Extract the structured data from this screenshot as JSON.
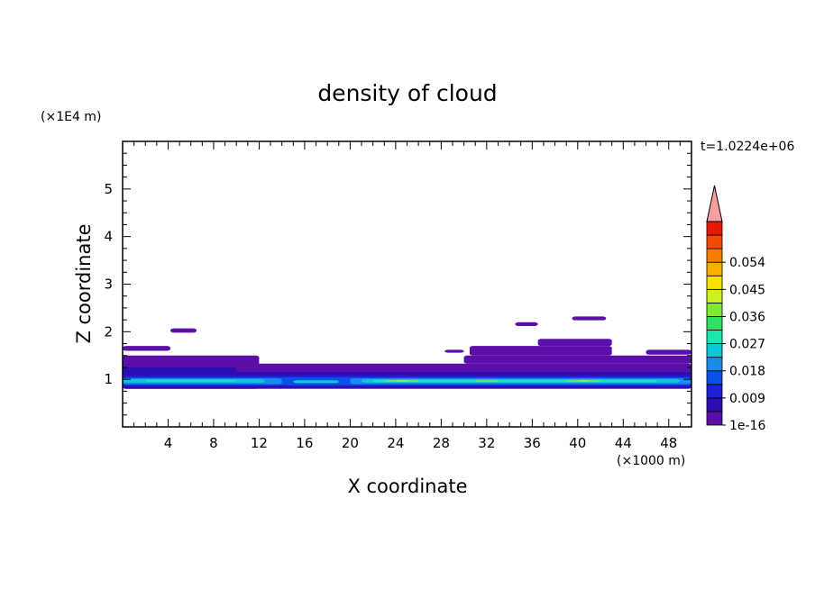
{
  "chart_data": {
    "type": "heatmap",
    "title": "density of cloud",
    "xlabel": "X coordinate",
    "ylabel": "Z coordinate",
    "x_unit": "(×1000 m)",
    "y_unit": "(×1E4 m)",
    "time_label": "t=1.0224e+06",
    "xlim": [
      0,
      50
    ],
    "ylim": [
      0,
      6
    ],
    "x_ticks": [
      4,
      8,
      12,
      16,
      20,
      24,
      28,
      32,
      36,
      40,
      44,
      48
    ],
    "y_ticks": [
      1,
      2,
      3,
      4,
      5
    ],
    "x_tick_labels": [
      "4",
      "8",
      "12",
      "16",
      "20",
      "24",
      "28",
      "32",
      "36",
      "40",
      "44",
      "48"
    ],
    "y_tick_labels": [
      "1",
      "2",
      "3",
      "4",
      "5"
    ],
    "colorbar": {
      "labels": [
        "1e-16",
        "0.009",
        "0.018",
        "0.027",
        "0.036",
        "0.045",
        "0.054"
      ],
      "colors": [
        "#5a10a8",
        "#2c0cb4",
        "#1a22d2",
        "#0a50e6",
        "#1a8cf0",
        "#0cc8d8",
        "#18e8b0",
        "#30e060",
        "#80ea30",
        "#cef020",
        "#f8e000",
        "#f8b000",
        "#f87c00",
        "#f44a00",
        "#e81808",
        "#f4a0a0"
      ],
      "extend": "max"
    },
    "layers": [
      {
        "level": 1,
        "color": "#5a10a8",
        "regions": [
          {
            "x0": 0,
            "x1": 50,
            "z0": 0.8,
            "z1": 1.33
          },
          {
            "x0": 0,
            "x1": 12,
            "z0": 0.8,
            "z1": 1.5
          },
          {
            "x0": 0,
            "x1": 4.2,
            "z0": 1.6,
            "z1": 1.7
          },
          {
            "x0": 4.2,
            "x1": 6.5,
            "z0": 1.98,
            "z1": 2.07
          },
          {
            "x0": 28.3,
            "x1": 30,
            "z0": 1.56,
            "z1": 1.62
          },
          {
            "x0": 30,
            "x1": 50,
            "z0": 1.33,
            "z1": 1.5
          },
          {
            "x0": 30.5,
            "x1": 43,
            "z0": 1.5,
            "z1": 1.7
          },
          {
            "x0": 36.5,
            "x1": 43,
            "z0": 1.7,
            "z1": 1.85
          },
          {
            "x0": 34.5,
            "x1": 36.5,
            "z0": 2.12,
            "z1": 2.2
          },
          {
            "x0": 39.5,
            "x1": 42.5,
            "z0": 2.24,
            "z1": 2.32
          },
          {
            "x0": 46,
            "x1": 50,
            "z0": 1.52,
            "z1": 1.62
          }
        ]
      },
      {
        "level": 2,
        "color": "#2c0cb4",
        "regions": [
          {
            "x0": 0,
            "x1": 50,
            "z0": 0.82,
            "z1": 1.15
          },
          {
            "x0": 0,
            "x1": 10,
            "z0": 0.82,
            "z1": 1.25
          }
        ]
      },
      {
        "level": 3,
        "color": "#1a22d2",
        "regions": [
          {
            "x0": 0,
            "x1": 50,
            "z0": 0.85,
            "z1": 1.08
          }
        ]
      },
      {
        "level": 4,
        "color": "#0a50e6",
        "regions": [
          {
            "x0": 0,
            "x1": 50,
            "z0": 0.88,
            "z1": 1.04
          }
        ]
      },
      {
        "level": 5,
        "color": "#1a8cf0",
        "regions": [
          {
            "x0": 0,
            "x1": 14,
            "z0": 0.9,
            "z1": 1.02
          },
          {
            "x0": 20,
            "x1": 50,
            "z0": 0.9,
            "z1": 1.02
          }
        ]
      },
      {
        "level": 6,
        "color": "#0cc8d8",
        "regions": [
          {
            "x0": 0,
            "x1": 12.5,
            "z0": 0.93,
            "z1": 1.0
          },
          {
            "x0": 15,
            "x1": 19,
            "z0": 0.92,
            "z1": 0.98
          },
          {
            "x0": 21,
            "x1": 49,
            "z0": 0.93,
            "z1": 1.0
          }
        ]
      },
      {
        "level": 7,
        "color": "#18e8b0",
        "regions": [
          {
            "x0": 2,
            "x1": 10,
            "z0": 0.95,
            "z1": 0.99
          },
          {
            "x0": 22,
            "x1": 47,
            "z0": 0.94,
            "z1": 0.99
          }
        ]
      },
      {
        "level": 8,
        "color": "#80ea30",
        "regions": [
          {
            "x0": 23,
            "x1": 26,
            "z0": 0.95,
            "z1": 0.98
          },
          {
            "x0": 31,
            "x1": 33,
            "z0": 0.95,
            "z1": 0.98
          },
          {
            "x0": 39,
            "x1": 42,
            "z0": 0.95,
            "z1": 0.98
          }
        ]
      },
      {
        "level": 9,
        "color": "#cef020",
        "regions": [
          {
            "x0": 24,
            "x1": 25,
            "z0": 0.955,
            "z1": 0.975
          },
          {
            "x0": 40,
            "x1": 41,
            "z0": 0.955,
            "z1": 0.975
          }
        ]
      }
    ]
  }
}
